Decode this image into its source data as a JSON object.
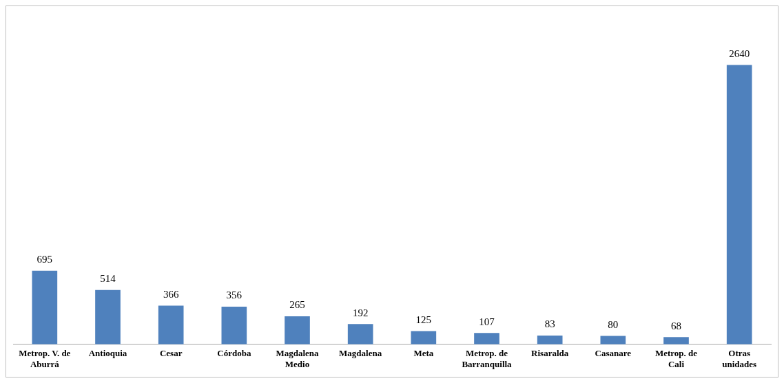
{
  "chart_data": {
    "type": "bar",
    "categories": [
      "Metrop. V. de Aburrá",
      "Antioquia",
      "Cesar",
      "Córdoba",
      "Magdalena Medio",
      "Magdalena",
      "Meta",
      "Metrop. de Barranquilla",
      "Risaralda",
      "Casanare",
      "Metrop. de Cali",
      "Otras unidades"
    ],
    "values": [
      695,
      514,
      366,
      356,
      265,
      192,
      125,
      107,
      83,
      80,
      68,
      2640
    ],
    "color": "#4f81bd",
    "data_labels": true,
    "grid": false,
    "legend": false
  }
}
